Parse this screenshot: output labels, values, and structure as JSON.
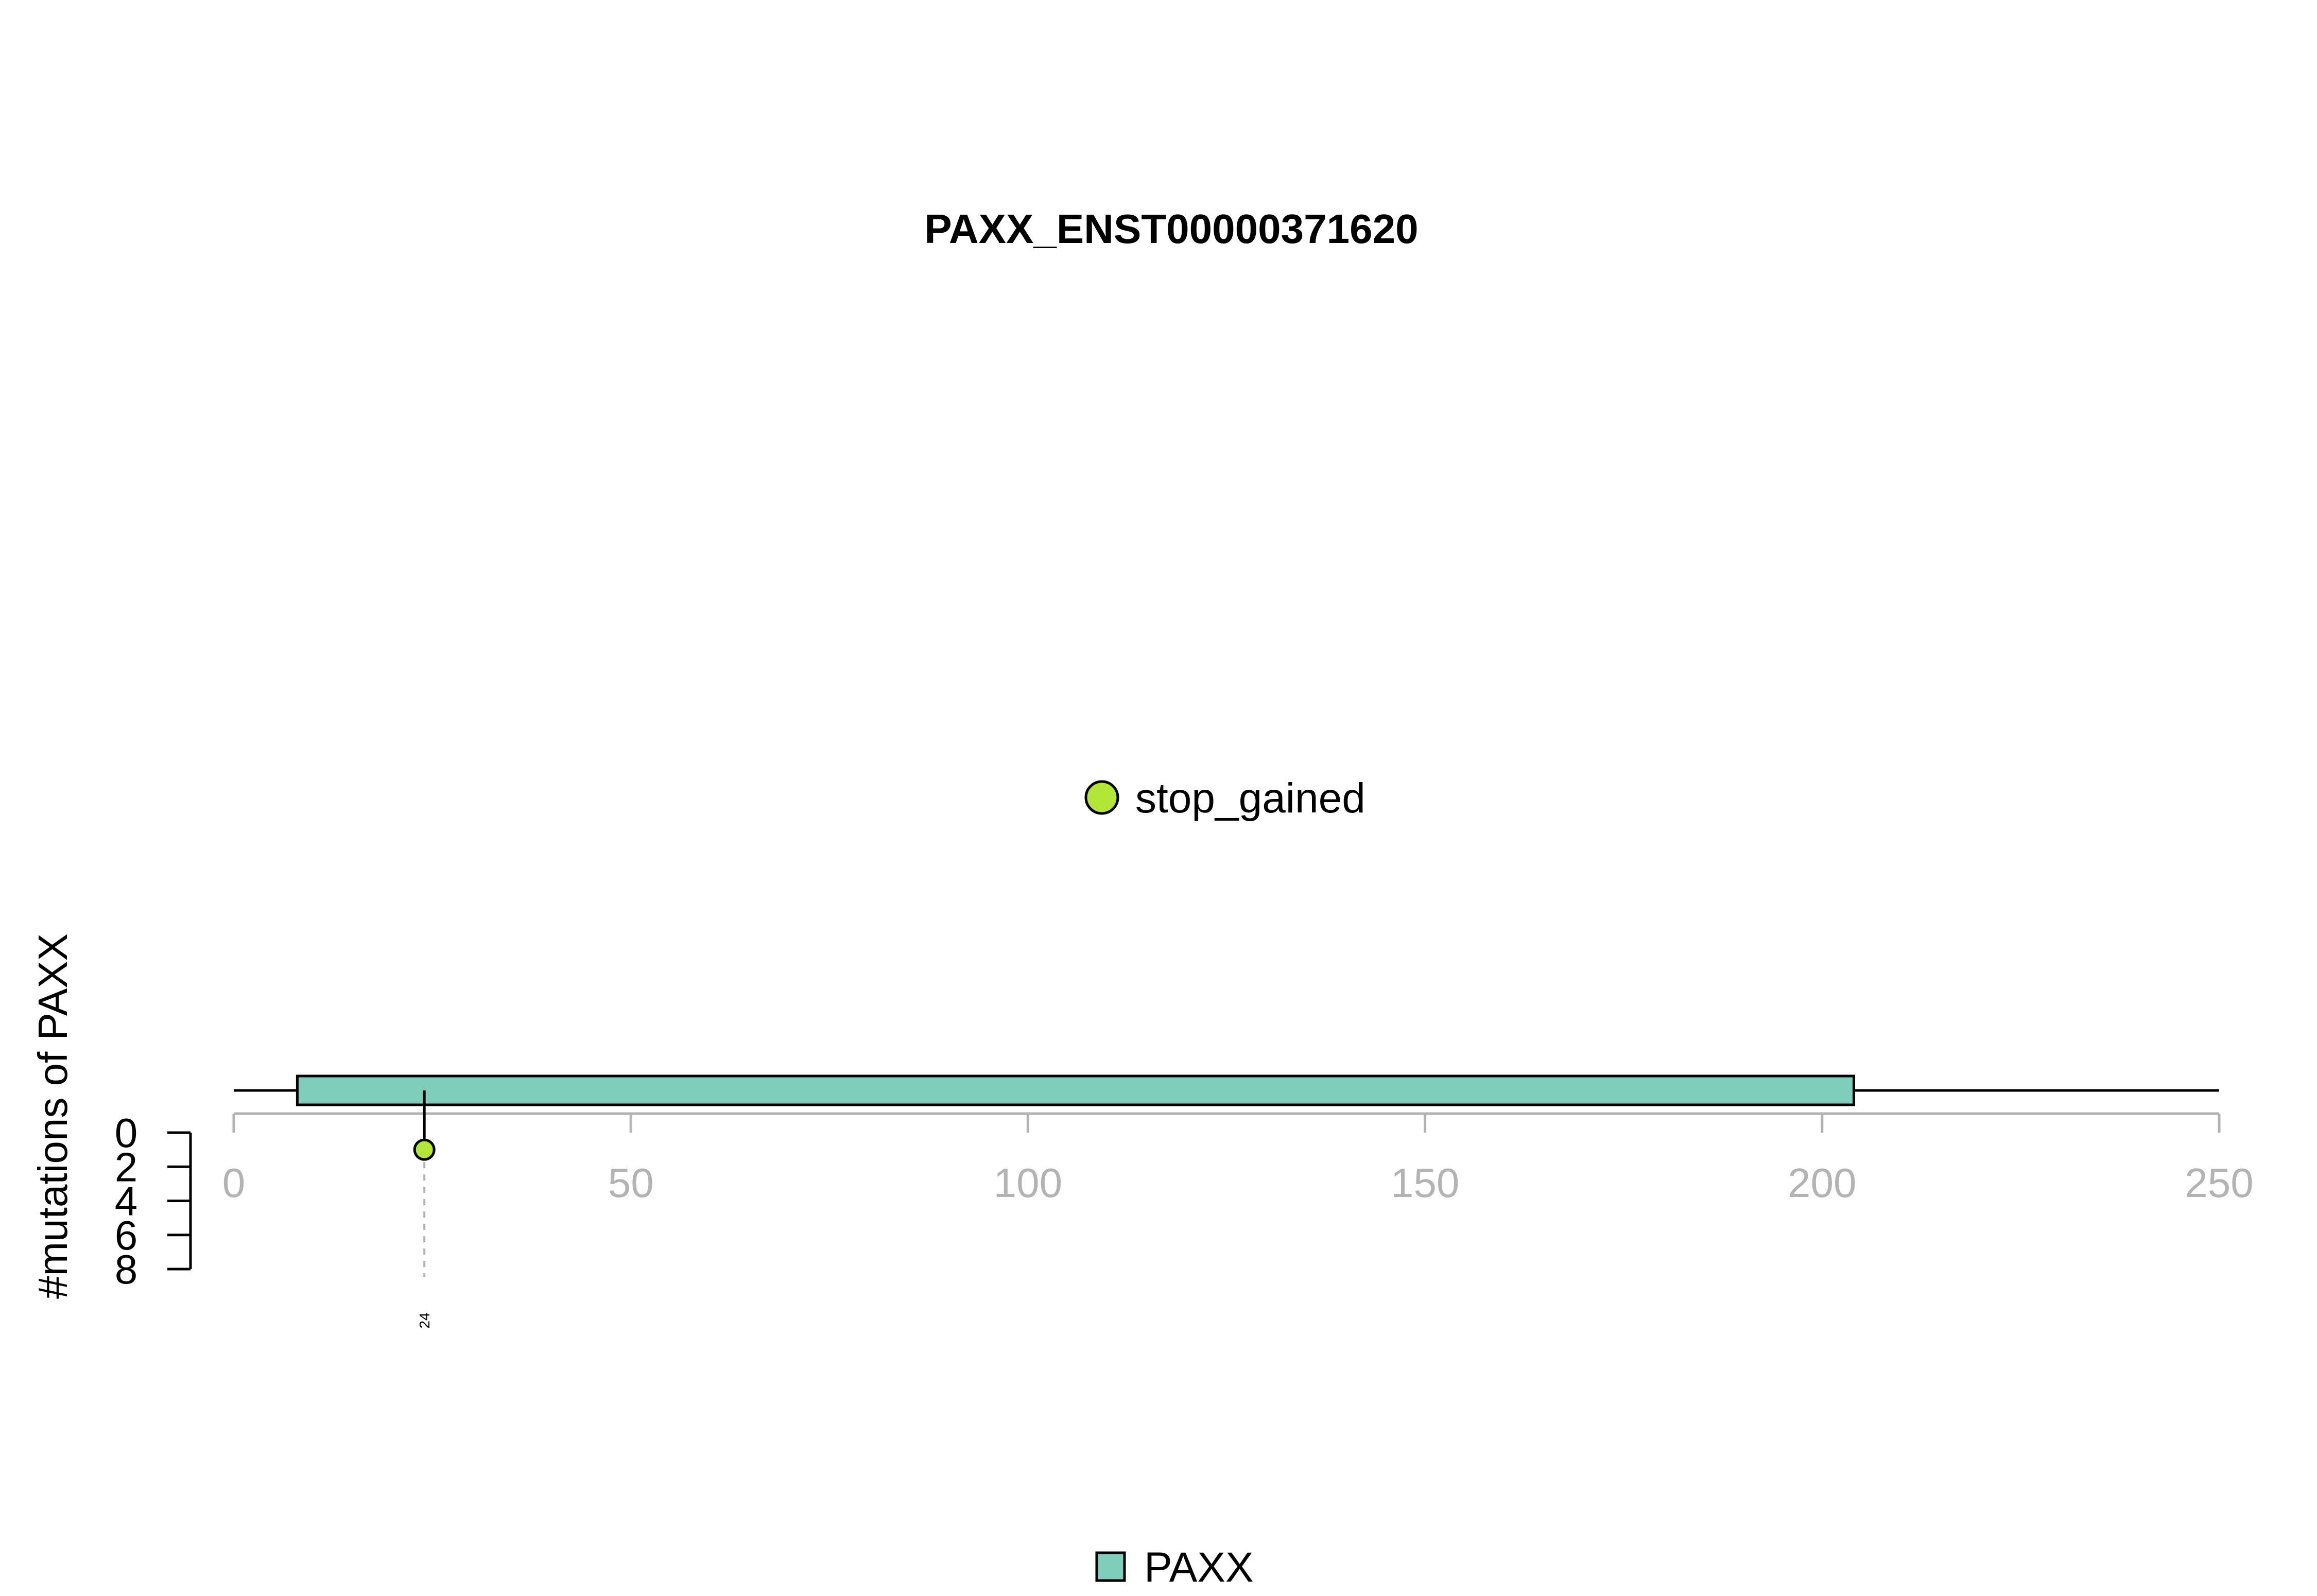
{
  "chart_data": {
    "type": "lollipop",
    "title": "PAXX_ENST00000371620",
    "ylabel": "#mutations of PAXX",
    "xlim": [
      0,
      250
    ],
    "xticks": [
      0,
      50,
      100,
      150,
      200,
      250
    ],
    "yticks": [
      0,
      2,
      4,
      6,
      8
    ],
    "ylim": [
      0,
      8
    ],
    "protein_length": 250,
    "domains": [
      {
        "name": "PAXX",
        "start": 8,
        "end": 204,
        "color": "#7fcdbb"
      }
    ],
    "mutations": [
      {
        "position": 24,
        "count": 1,
        "type": "stop_gained",
        "color": "#b2e639",
        "label": "24"
      }
    ],
    "mutation_legend": [
      {
        "label": "stop_gained",
        "color": "#b2e639"
      }
    ],
    "domain_legend": [
      {
        "label": "PAXX",
        "color": "#7fcdbb"
      }
    ],
    "colors": {
      "axis": "#b3b3b3",
      "text": "#000000",
      "background": "#ffffff"
    }
  }
}
